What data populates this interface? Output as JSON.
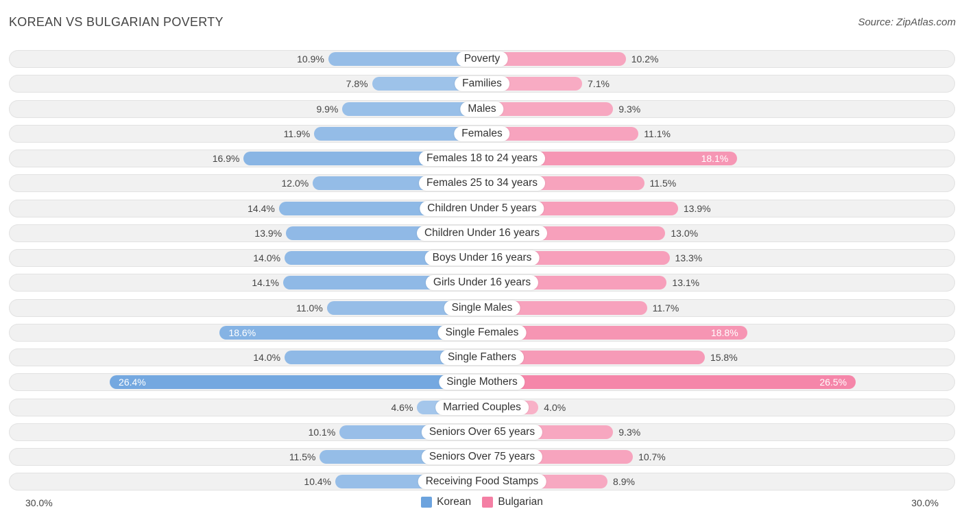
{
  "header": {
    "title": "KOREAN VS BULGARIAN POVERTY",
    "source": "Source: ZipAtlas.com"
  },
  "colors": {
    "korean": "#6ca3de",
    "bulgarian": "#f47fa4"
  },
  "chart_data": {
    "type": "bar",
    "orientation": "horizontal-diverging",
    "title": "KOREAN VS BULGARIAN POVERTY",
    "categories": [
      "Poverty",
      "Families",
      "Males",
      "Females",
      "Females 18 to 24 years",
      "Females 25 to 34 years",
      "Children Under 5 years",
      "Children Under 16 years",
      "Boys Under 16 years",
      "Girls Under 16 years",
      "Single Males",
      "Single Females",
      "Single Fathers",
      "Single Mothers",
      "Married Couples",
      "Seniors Over 65 years",
      "Seniors Over 75 years",
      "Receiving Food Stamps"
    ],
    "series": [
      {
        "name": "Korean",
        "values": [
          10.9,
          7.8,
          9.9,
          11.9,
          16.9,
          12.0,
          14.4,
          13.9,
          14.0,
          14.1,
          11.0,
          18.6,
          14.0,
          26.4,
          4.6,
          10.1,
          11.5,
          10.4
        ]
      },
      {
        "name": "Bulgarian",
        "values": [
          10.2,
          7.1,
          9.3,
          11.1,
          18.1,
          11.5,
          13.9,
          13.0,
          13.3,
          13.1,
          11.7,
          18.8,
          15.8,
          26.5,
          4.0,
          9.3,
          10.7,
          8.9
        ]
      }
    ],
    "value_labels": {
      "Korean": [
        "10.9%",
        "7.8%",
        "9.9%",
        "11.9%",
        "16.9%",
        "12.0%",
        "14.4%",
        "13.9%",
        "14.0%",
        "14.1%",
        "11.0%",
        "18.6%",
        "14.0%",
        "26.4%",
        "4.6%",
        "10.1%",
        "11.5%",
        "10.4%"
      ],
      "Bulgarian": [
        "10.2%",
        "7.1%",
        "9.3%",
        "11.1%",
        "18.1%",
        "11.5%",
        "13.9%",
        "13.0%",
        "13.3%",
        "13.1%",
        "11.7%",
        "18.8%",
        "15.8%",
        "26.5%",
        "4.0%",
        "9.3%",
        "10.7%",
        "8.9%"
      ]
    },
    "xlim": [
      0,
      30
    ],
    "axis_labels": {
      "left": "30.0%",
      "right": "30.0%"
    },
    "legend": [
      "Korean",
      "Bulgarian"
    ],
    "legend_position": "bottom-center"
  }
}
